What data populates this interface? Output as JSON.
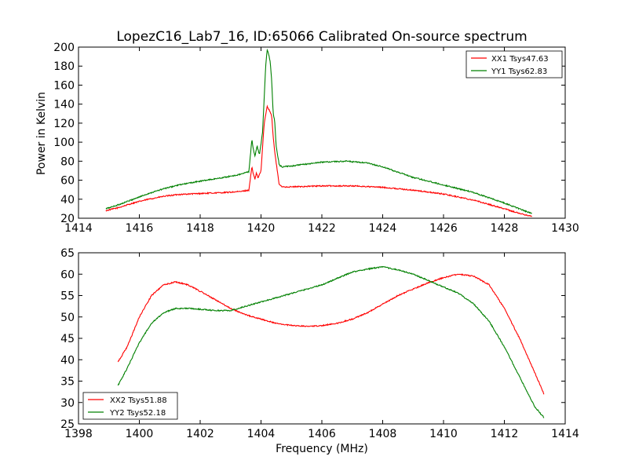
{
  "chart_data": [
    {
      "type": "line",
      "title": "LopezC16_Lab7_16, ID:65066 Calibrated On-source spectrum",
      "xlabel": "",
      "ylabel": "Power in Kelvin",
      "xlim": [
        1414,
        1430
      ],
      "ylim": [
        20,
        200
      ],
      "xticks": [
        "1414",
        "1416",
        "1418",
        "1420",
        "1422",
        "1424",
        "1426",
        "1428",
        "1430"
      ],
      "yticks": [
        "20",
        "40",
        "60",
        "80",
        "100",
        "120",
        "140",
        "160",
        "180",
        "200"
      ],
      "legend_position": "top-right",
      "grid": false,
      "series": [
        {
          "name": "XX1 Tsys47.63",
          "color": "#ff0000",
          "points": [
            [
              1414.9,
              28
            ],
            [
              1415.3,
              31
            ],
            [
              1415.8,
              36
            ],
            [
              1416.3,
              40
            ],
            [
              1416.8,
              43
            ],
            [
              1417.3,
              45
            ],
            [
              1418.0,
              46
            ],
            [
              1418.8,
              47
            ],
            [
              1419.3,
              48
            ],
            [
              1419.6,
              49.5
            ],
            [
              1419.7,
              74
            ],
            [
              1419.75,
              66
            ],
            [
              1419.8,
              61
            ],
            [
              1419.85,
              68
            ],
            [
              1419.9,
              62
            ],
            [
              1420.0,
              70
            ],
            [
              1420.1,
              118
            ],
            [
              1420.2,
              138
            ],
            [
              1420.3,
              132
            ],
            [
              1420.35,
              128
            ],
            [
              1420.4,
              106
            ],
            [
              1420.45,
              90
            ],
            [
              1420.5,
              78
            ],
            [
              1420.6,
              55
            ],
            [
              1420.7,
              53
            ],
            [
              1421.0,
              53
            ],
            [
              1422.0,
              54
            ],
            [
              1423.0,
              54
            ],
            [
              1424.0,
              52.5
            ],
            [
              1425.0,
              49.5
            ],
            [
              1426.0,
              45.5
            ],
            [
              1427.0,
              39
            ],
            [
              1428.0,
              30
            ],
            [
              1428.5,
              25
            ],
            [
              1428.9,
              22
            ]
          ]
        },
        {
          "name": "YY1 Tsys62.83",
          "color": "#008000",
          "points": [
            [
              1414.9,
              30
            ],
            [
              1415.3,
              34
            ],
            [
              1415.8,
              40
            ],
            [
              1416.3,
              46
            ],
            [
              1416.8,
              51
            ],
            [
              1417.3,
              55
            ],
            [
              1418.0,
              59
            ],
            [
              1418.8,
              63
            ],
            [
              1419.3,
              66
            ],
            [
              1419.6,
              69
            ],
            [
              1419.7,
              103
            ],
            [
              1419.75,
              92
            ],
            [
              1419.8,
              85
            ],
            [
              1419.87,
              96
            ],
            [
              1419.95,
              87
            ],
            [
              1420.05,
              110
            ],
            [
              1420.15,
              178
            ],
            [
              1420.2,
              197
            ],
            [
              1420.25,
              193
            ],
            [
              1420.3,
              185
            ],
            [
              1420.35,
              165
            ],
            [
              1420.4,
              130
            ],
            [
              1420.45,
              122
            ],
            [
              1420.5,
              95
            ],
            [
              1420.6,
              76
            ],
            [
              1420.7,
              74
            ],
            [
              1421.0,
              75
            ],
            [
              1422.0,
              79
            ],
            [
              1422.8,
              80
            ],
            [
              1423.5,
              78
            ],
            [
              1424.0,
              74
            ],
            [
              1425.0,
              63
            ],
            [
              1426.0,
              55
            ],
            [
              1427.0,
              47
            ],
            [
              1428.0,
              36
            ],
            [
              1428.9,
              25
            ]
          ]
        }
      ]
    },
    {
      "type": "line",
      "title": "",
      "xlabel": "Frequency (MHz)",
      "ylabel": "",
      "xlim": [
        1398,
        1414
      ],
      "ylim": [
        25,
        65
      ],
      "xticks": [
        "1398",
        "1400",
        "1402",
        "1404",
        "1406",
        "1408",
        "1410",
        "1412",
        "1414"
      ],
      "yticks": [
        "25",
        "30",
        "35",
        "40",
        "45",
        "50",
        "55",
        "60",
        "65"
      ],
      "legend_position": "bottom-left",
      "grid": false,
      "series": [
        {
          "name": "XX2 Tsys51.88",
          "color": "#ff0000",
          "points": [
            [
              1399.3,
              39.5
            ],
            [
              1399.6,
              43
            ],
            [
              1400.0,
              50
            ],
            [
              1400.4,
              55
            ],
            [
              1400.8,
              57.5
            ],
            [
              1401.2,
              58.2
            ],
            [
              1401.6,
              57.5
            ],
            [
              1402.0,
              56
            ],
            [
              1402.5,
              54
            ],
            [
              1403.0,
              52
            ],
            [
              1403.5,
              50.5
            ],
            [
              1404.0,
              49.5
            ],
            [
              1404.5,
              48.5
            ],
            [
              1405.0,
              48
            ],
            [
              1405.5,
              47.8
            ],
            [
              1406.0,
              48
            ],
            [
              1406.5,
              48.5
            ],
            [
              1407.0,
              49.5
            ],
            [
              1407.5,
              51
            ],
            [
              1408.0,
              53
            ],
            [
              1408.5,
              55
            ],
            [
              1409.0,
              56.5
            ],
            [
              1409.5,
              58
            ],
            [
              1410.0,
              59.2
            ],
            [
              1410.5,
              60
            ],
            [
              1411.0,
              59.5
            ],
            [
              1411.5,
              57.5
            ],
            [
              1412.0,
              52
            ],
            [
              1412.5,
              45
            ],
            [
              1413.0,
              37
            ],
            [
              1413.3,
              32
            ]
          ]
        },
        {
          "name": "YY2 Tsys52.18",
          "color": "#008000",
          "points": [
            [
              1399.3,
              34
            ],
            [
              1399.6,
              38
            ],
            [
              1400.0,
              44
            ],
            [
              1400.4,
              48.5
            ],
            [
              1400.8,
              51
            ],
            [
              1401.2,
              52
            ],
            [
              1401.6,
              52
            ],
            [
              1402.0,
              51.8
            ],
            [
              1402.5,
              51.5
            ],
            [
              1403.0,
              51.5
            ],
            [
              1403.5,
              52.5
            ],
            [
              1404.0,
              53.5
            ],
            [
              1404.5,
              54.5
            ],
            [
              1405.0,
              55.5
            ],
            [
              1405.5,
              56.5
            ],
            [
              1406.0,
              57.5
            ],
            [
              1406.5,
              59
            ],
            [
              1407.0,
              60.5
            ],
            [
              1407.5,
              61.2
            ],
            [
              1408.0,
              61.7
            ],
            [
              1408.5,
              61
            ],
            [
              1409.0,
              60
            ],
            [
              1409.5,
              58.5
            ],
            [
              1410.0,
              57
            ],
            [
              1410.5,
              55.5
            ],
            [
              1411.0,
              53
            ],
            [
              1411.5,
              49
            ],
            [
              1412.0,
              43
            ],
            [
              1412.5,
              36
            ],
            [
              1413.0,
              29
            ],
            [
              1413.3,
              26.5
            ]
          ]
        }
      ]
    }
  ]
}
